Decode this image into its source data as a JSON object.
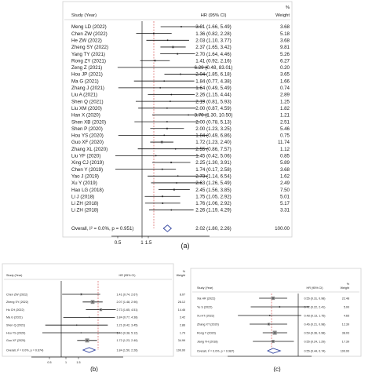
{
  "chart_data": [
    {
      "type": "forest",
      "panel_label": "(a)",
      "headers": {
        "study": "Study (Year)",
        "effect": "HR (95% CI)",
        "weight_pct": "%",
        "weight": "Weight"
      },
      "reference_line": 1,
      "x_ticks": [
        "0.5",
        "1",
        "1.5"
      ],
      "rows": [
        {
          "study": "Meng LD (2022)",
          "hr": 3.01,
          "lo": 1.66,
          "hi": 5.49,
          "ci": "3.01 (1.66, 5.49)",
          "weight": "3.68"
        },
        {
          "study": "Chen ZW (2022)",
          "hr": 1.36,
          "lo": 0.82,
          "hi": 2.28,
          "ci": "1.36 (0.82, 2.28)",
          "weight": "5.18"
        },
        {
          "study": "He ZW (2022)",
          "hr": 2.03,
          "lo": 1.1,
          "hi": 3.77,
          "ci": "2.03 (1.10, 3.77)",
          "weight": "3.68"
        },
        {
          "study": "Zheng SY (2022)",
          "hr": 2.37,
          "lo": 1.65,
          "hi": 3.42,
          "ci": "2.37 (1.65, 3.42)",
          "weight": "9.81"
        },
        {
          "study": "Yang TY (2021)",
          "hr": 2.7,
          "lo": 1.64,
          "hi": 4.46,
          "ci": "2.70 (1.64, 4.46)",
          "weight": "5.26"
        },
        {
          "study": "Rong ZY (2021)",
          "hr": 1.41,
          "lo": 0.92,
          "hi": 2.16,
          "ci": "1.41 (0.92, 2.16)",
          "weight": "6.27"
        },
        {
          "study": "Zeng Z (2021)",
          "hr": 6.29,
          "lo": 0.48,
          "hi": 83.01,
          "ci": "6.29 (0.48, 83.01)",
          "weight": "0.20"
        },
        {
          "study": "Hou JP (2021)",
          "hr": 2.94,
          "lo": 1.85,
          "hi": 6.18,
          "ci": "2.94 (1.85, 6.18)",
          "weight": "3.65"
        },
        {
          "study": "Ma G (2021)",
          "hr": 1.84,
          "lo": 0.77,
          "hi": 4.38,
          "ci": "1.84 (0.77, 4.38)",
          "weight": "1.66"
        },
        {
          "study": "Zhang J (2021)",
          "hr": 1.64,
          "lo": 0.49,
          "hi": 5.49,
          "ci": "1.64 (0.49, 5.49)",
          "weight": "0.74"
        },
        {
          "study": "Liu A (2021)",
          "hr": 2.26,
          "lo": 1.15,
          "hi": 4.44,
          "ci": "2.26 (1.15, 4.44)",
          "weight": "2.89"
        },
        {
          "study": "Shen Q (2021)",
          "hr": 2.19,
          "lo": 0.81,
          "hi": 5.93,
          "ci": "2.19 (0.81, 5.93)",
          "weight": "1.25"
        },
        {
          "study": "Liu XM (2020)",
          "hr": 2.0,
          "lo": 0.87,
          "hi": 4.59,
          "ci": "2.00 (0.87, 4.59)",
          "weight": "1.82"
        },
        {
          "study": "Han X (2020)",
          "hr": 3.7,
          "lo": 1.3,
          "hi": 10.5,
          "ci": "3.70 (1.30, 10.50)",
          "weight": "1.21"
        },
        {
          "study": "Shen XB (2020)",
          "hr": 2.0,
          "lo": 0.78,
          "hi": 5.13,
          "ci": "2.00 (0.78, 5.13)",
          "weight": "2.51"
        },
        {
          "study": "Shen P (2020)",
          "hr": 2.0,
          "lo": 1.23,
          "hi": 3.25,
          "ci": "2.00 (1.23, 3.25)",
          "weight": "5.46"
        },
        {
          "study": "Hou YS (2020)",
          "hr": 1.84,
          "lo": 0.49,
          "hi": 6.86,
          "ci": "1.84 (0.49, 6.86)",
          "weight": "0.75"
        },
        {
          "study": "Guo XF (2020)",
          "hr": 1.72,
          "lo": 1.23,
          "hi": 2.4,
          "ci": "1.72 (1.23, 2.40)",
          "weight": "11.74"
        },
        {
          "study": "Zhang XL (2020)",
          "hr": 2.55,
          "lo": 0.86,
          "hi": 7.57,
          "ci": "2.55 (0.86, 7.57)",
          "weight": "1.12"
        },
        {
          "study": "Liu YF (2020)",
          "hr": 1.45,
          "lo": 0.42,
          "hi": 5.06,
          "ci": "1.45 (0.42, 5.06)",
          "weight": "0.85"
        },
        {
          "study": "Xing CJ (2019)",
          "hr": 2.25,
          "lo": 1.3,
          "hi": 3.91,
          "ci": "2.25 (1.30, 3.91)",
          "weight": "5.89"
        },
        {
          "study": "Chen Y (2019)",
          "hr": 1.74,
          "lo": 0.17,
          "hi": 2.58,
          "ci": "1.74 (0.17, 2.58)",
          "weight": "3.68"
        },
        {
          "study": "Yao J (2019)",
          "hr": 2.73,
          "lo": 1.14,
          "hi": 6.54,
          "ci": "2.73 (1.14, 6.54)",
          "weight": "1.62"
        },
        {
          "study": "Xu Y (2019)",
          "hr": 2.63,
          "lo": 1.26,
          "hi": 5.49,
          "ci": "2.63 (1.26, 5.49)",
          "weight": "2.49"
        },
        {
          "study": "Hao LG (2018)",
          "hr": 2.45,
          "lo": 1.56,
          "hi": 3.85,
          "ci": "2.45 (1.56, 3.85)",
          "weight": "7.50"
        },
        {
          "study": "Li J (2018)",
          "hr": 1.75,
          "lo": 1.05,
          "hi": 2.92,
          "ci": "1.75 (1.05, 2.92)",
          "weight": "5.01"
        },
        {
          "study": "Li ZH (2018)",
          "hr": 1.76,
          "lo": 1.06,
          "hi": 2.92,
          "ci": "1.76 (1.06, 2.92)",
          "weight": "5.17"
        },
        {
          "study": "Li ZH (2018)",
          "hr": 2.26,
          "lo": 1.19,
          "hi": 4.29,
          "ci": "2.26 (1.19, 4.29)",
          "weight": "3.31"
        }
      ],
      "overall": {
        "label": "Overall, I² = 0.0%, p = 0.951)",
        "hr": 2.02,
        "lo": 1.8,
        "hi": 2.26,
        "ci": "2.02 (1.80, 2.26)",
        "weight": "100.00"
      }
    },
    {
      "type": "forest",
      "panel_label": "(b)",
      "headers": {
        "study": "Study (Year)",
        "effect": "HR (95% CI)",
        "weight_pct": "%",
        "weight": "Weight"
      },
      "reference_line": 1,
      "x_ticks": [
        "0.5",
        "1",
        "1.5"
      ],
      "rows": [
        {
          "study": "Chen ZW (2022)",
          "hr": 1.41,
          "lo": 0.74,
          "hi": 2.67,
          "ci": "1.41 (0.74, 2.67)",
          "weight": "8.07"
        },
        {
          "study": "Zheng SY (2022)",
          "hr": 2.07,
          "lo": 1.48,
          "hi": 2.9,
          "ci": "2.07 (1.48, 2.90)",
          "weight": "28.12"
        },
        {
          "study": "Hu CH (2022)",
          "hr": 2.73,
          "lo": 1.65,
          "hi": 4.51,
          "ci": "2.73 (1.65, 4.51)",
          "weight": "14.46"
        },
        {
          "study": "Ma G (2021)",
          "hr": 1.84,
          "lo": 0.77,
          "hi": 4.38,
          "ci": "1.84 (0.77, 4.38)",
          "weight": "3.42"
        },
        {
          "study": "Shen Q (2021)",
          "hr": 1.21,
          "lo": 0.42,
          "hi": 3.45,
          "ci": "1.21 (0.42, 3.45)",
          "weight": "2.86"
        },
        {
          "study": "Hou YS (2020)",
          "hr": 1.4,
          "lo": 0.38,
          "hi": 5.12,
          "ci": "1.40 (0.38, 5.12)",
          "weight": "1.79"
        },
        {
          "study": "Guo XF (2020)",
          "hr": 1.72,
          "lo": 1.23,
          "hi": 2.4,
          "ci": "1.72 (1.23, 2.40)",
          "weight": "34.99"
        }
      ],
      "overall": {
        "label": "Overall, I² = 0.0%, p = 0.674)",
        "hr": 1.84,
        "lo": 1.5,
        "hi": 2.26,
        "ci": "1.84 (1.50, 2.26)",
        "weight": "100.00"
      }
    },
    {
      "type": "forest",
      "panel_label": "(c)",
      "headers": {
        "study": "Study (Year)",
        "effect": "HR (95% CI)",
        "weight_pct": "%",
        "weight": "Weight"
      },
      "reference_line": 1,
      "x_ticks": [],
      "rows": [
        {
          "study": "Xia HR (2022)",
          "hr": 0.55,
          "lo": 0.31,
          "hi": 0.98,
          "ci": "0.55 (0.31, 0.98)",
          "weight": "22.48"
        },
        {
          "study": "Yu S (2022)",
          "hr": 0.72,
          "lo": 0.22,
          "hi": 2.41,
          "ci": "0.72 (0.22, 2.41)",
          "weight": "5.00"
        },
        {
          "study": "Xu HT (2022)",
          "hr": 0.48,
          "lo": 0.13,
          "hi": 1.75,
          "ci": "0.48 (0.13, 1.75)",
          "weight": "4.65"
        },
        {
          "study": "Zhang XT (2020)",
          "hr": 0.46,
          "lo": 0.21,
          "hi": 0.98,
          "ci": "0.46 (0.21, 0.98)",
          "weight": "12.39"
        },
        {
          "study": "Rong Y (2020)",
          "hr": 0.59,
          "lo": 0.36,
          "hi": 0.98,
          "ci": "0.59 (0.36, 0.98)",
          "weight": "38.03"
        },
        {
          "study": "Jiang YH (2018)",
          "hr": 0.55,
          "lo": 0.24,
          "hi": 1.29,
          "ci": "0.55 (0.24, 1.29)",
          "weight": "17.39"
        }
      ],
      "overall": {
        "label": "Overall, I² = 0.0%, p = 0.987)",
        "hr": 0.55,
        "lo": 0.44,
        "hi": 0.74,
        "ci": "0.55 (0.44, 0.74)",
        "weight": "100.00"
      }
    }
  ]
}
